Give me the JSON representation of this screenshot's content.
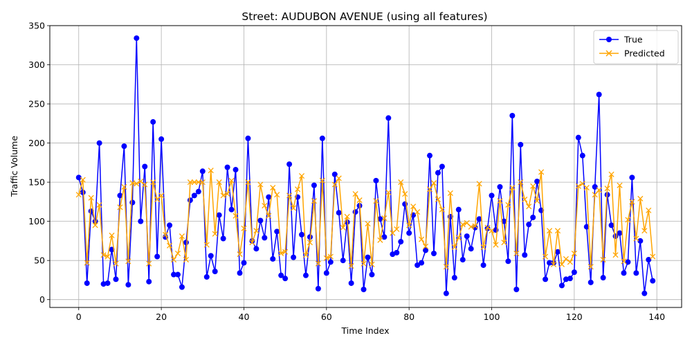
{
  "chart_data": {
    "type": "line",
    "title": "Street: AUDUBON AVENUE (using all features)",
    "xlabel": "Time Index",
    "ylabel": "Traffic Volume",
    "xlim": [
      -7,
      146
    ],
    "ylim": [
      -10,
      350
    ],
    "x_ticks": [
      0,
      20,
      40,
      60,
      80,
      100,
      120,
      140
    ],
    "y_ticks": [
      0,
      50,
      100,
      150,
      200,
      250,
      300,
      350
    ],
    "grid": true,
    "legend_position": "top-right",
    "series": [
      {
        "name": "True",
        "color": "#0000ff",
        "marker": "circle",
        "values": [
          156,
          137,
          21,
          113,
          100,
          200,
          20,
          21,
          64,
          26,
          133,
          196,
          19,
          124,
          334,
          100,
          170,
          23,
          227,
          55,
          205,
          80,
          95,
          32,
          32,
          16,
          73,
          127,
          133,
          138,
          164,
          29,
          56,
          36,
          108,
          78,
          169,
          115,
          166,
          34,
          47,
          206,
          75,
          65,
          101,
          79,
          131,
          52,
          87,
          31,
          27,
          173,
          54,
          131,
          83,
          31,
          80,
          146,
          14,
          206,
          34,
          48,
          160,
          111,
          50,
          99,
          21,
          112,
          120,
          13,
          54,
          32,
          152,
          103,
          80,
          232,
          58,
          60,
          74,
          122,
          85,
          108,
          44,
          47,
          63,
          184,
          59,
          162,
          170,
          8,
          106,
          28,
          115,
          51,
          81,
          65,
          92,
          103,
          44,
          91,
          133,
          89,
          144,
          100,
          49,
          235,
          13,
          198,
          57,
          96,
          105,
          151,
          114,
          26,
          47,
          47,
          61,
          18,
          26,
          27,
          35,
          207,
          184,
          93,
          22,
          144,
          262,
          28,
          134,
          95,
          81,
          85,
          34,
          48,
          156,
          34,
          75,
          8,
          51,
          24
        ]
      },
      {
        "name": "Predicted",
        "color": "#ffa500",
        "marker": "x",
        "values": [
          134,
          153,
          47,
          130,
          95,
          121,
          57,
          55,
          82,
          46,
          118,
          144,
          49,
          149,
          148,
          151,
          147,
          46,
          150,
          128,
          133,
          83,
          69,
          51,
          59,
          81,
          51,
          150,
          150,
          150,
          150,
          70,
          165,
          84,
          150,
          133,
          135,
          152,
          107,
          58,
          91,
          150,
          73,
          88,
          147,
          120,
          107,
          143,
          134,
          59,
          61,
          133,
          117,
          141,
          158,
          57,
          73,
          126,
          46,
          152,
          53,
          55,
          147,
          155,
          92,
          106,
          43,
          135,
          127,
          46,
          97,
          45,
          126,
          76,
          104,
          137,
          85,
          90,
          150,
          135,
          95,
          119,
          112,
          77,
          68,
          141,
          149,
          128,
          115,
          42,
          136,
          67,
          79,
          96,
          98,
          93,
          94,
          148,
          67,
          92,
          88,
          70,
          126,
          73,
          121,
          143,
          59,
          150,
          128,
          119,
          145,
          126,
          163,
          55,
          88,
          45,
          88,
          45,
          52,
          48,
          59,
          145,
          148,
          143,
          42,
          134,
          140,
          51,
          142,
          160,
          57,
          146,
          49,
          102,
          125,
          78,
          129,
          88,
          114,
          55
        ]
      }
    ]
  }
}
